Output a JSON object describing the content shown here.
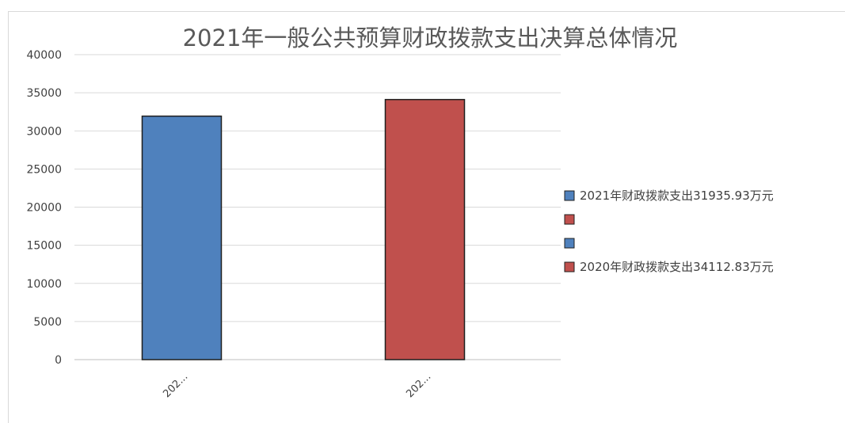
{
  "chart_data": {
    "type": "bar",
    "title": "2021年一般公共预算财政拨款支出决算总体情况",
    "categories": [
      "202...",
      "202..."
    ],
    "series": [
      {
        "name": "2021年财政拨款支出31935.93万元",
        "color": "#4f81bd",
        "values": [
          31935.93,
          null
        ]
      },
      {
        "name": "",
        "color": "#c0504d",
        "values": [
          null,
          null
        ]
      },
      {
        "name": "",
        "color": "#4f81bd",
        "values": [
          null,
          null
        ]
      },
      {
        "name": "2020年财政拨款支出34112.83万元",
        "color": "#c0504d",
        "values": [
          null,
          34112.83
        ]
      }
    ],
    "ylim": [
      0,
      40000
    ],
    "yticks": [
      0,
      5000,
      10000,
      15000,
      20000,
      25000,
      30000,
      35000,
      40000
    ],
    "grid": true,
    "legend": "right"
  }
}
